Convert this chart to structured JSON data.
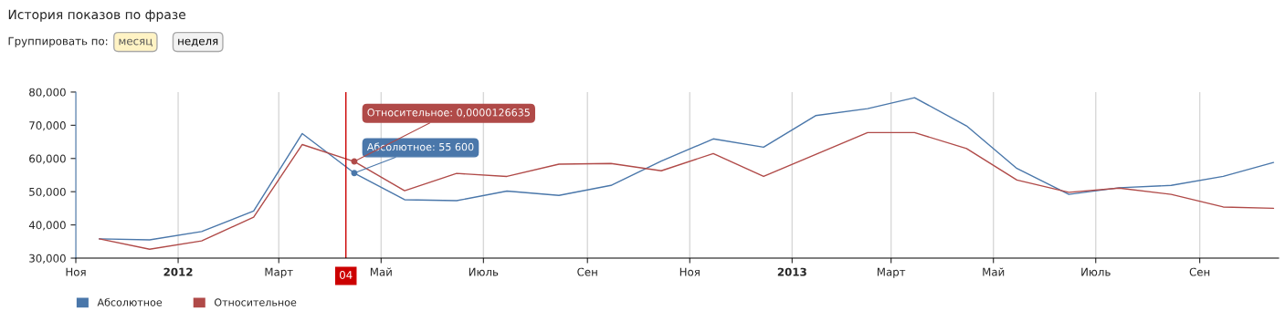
{
  "chart_data": {
    "type": "line",
    "title": "История показов по фразе",
    "x": [
      "2011-11-15",
      "2011-12-15",
      "2012-01-15",
      "2012-02-15",
      "2012-03-15",
      "2012-04-15",
      "2012-05-15",
      "2012-06-15",
      "2012-07-15",
      "2012-08-15",
      "2012-09-15",
      "2012-10-15",
      "2012-11-15",
      "2012-12-15",
      "2013-01-15",
      "2013-02-15",
      "2013-03-15",
      "2013-04-15",
      "2013-05-15",
      "2013-06-15",
      "2013-07-15",
      "2013-08-15",
      "2013-09-15",
      "2013-10-15"
    ],
    "series": [
      {
        "name": "Абсолютное",
        "color": "#4a77aa",
        "values": [
          35800,
          35500,
          38000,
          44200,
          67500,
          55600,
          47600,
          47300,
          50200,
          48900,
          51900,
          59200,
          65900,
          63400,
          72900,
          75000,
          78300,
          69800,
          57000,
          49200,
          51200,
          51900,
          54600,
          58800
        ]
      },
      {
        "name": "Относительное",
        "color": "#b04a48",
        "values": [
          35800,
          32700,
          35200,
          42300,
          64200,
          59100,
          50300,
          55500,
          54600,
          58300,
          58500,
          56300,
          61500,
          54600,
          61200,
          67800,
          67800,
          63000,
          53500,
          49800,
          51100,
          49200,
          45400,
          45000
        ]
      }
    ],
    "xlim": [
      "2011-11-01",
      "2013-10-18"
    ],
    "xticks": [
      {
        "value": "2011-11-01",
        "label": "Ноя"
      },
      {
        "value": "2012-01-01",
        "label": "2012"
      },
      {
        "value": "2012-03-01",
        "label": "Март"
      },
      {
        "value": "2012-05-01",
        "label": "Май"
      },
      {
        "value": "2012-07-01",
        "label": "Июль"
      },
      {
        "value": "2012-09-01",
        "label": "Сен"
      },
      {
        "value": "2012-11-01",
        "label": "Ноя"
      },
      {
        "value": "2013-01-01",
        "label": "2013"
      },
      {
        "value": "2013-03-01",
        "label": "Март"
      },
      {
        "value": "2013-05-01",
        "label": "Май"
      },
      {
        "value": "2013-07-01",
        "label": "Июль"
      },
      {
        "value": "2013-09-01",
        "label": "Сен"
      }
    ],
    "ylim": [
      30000,
      80000
    ],
    "yticks": [
      {
        "value": 30000,
        "label": "30,000"
      },
      {
        "value": 40000,
        "label": "40,000"
      },
      {
        "value": 50000,
        "label": "50,000"
      },
      {
        "value": 60000,
        "label": "60,000"
      },
      {
        "value": 70000,
        "label": "70,000"
      },
      {
        "value": 80000,
        "label": "80,000"
      }
    ],
    "grid": "x",
    "legend": "bottom left",
    "marker": "none",
    "line_style": "solid",
    "ref_lines": [
      {
        "axis": "x",
        "value": "2012-04-10",
        "label": "04",
        "color": "#cc0000"
      }
    ],
    "annotations": [
      "Группировать по:",
      "месяц",
      "неделя",
      {
        "text": "Абсолютное: 55 600",
        "x": "2012-04-15",
        "y": 55600
      },
      {
        "text": "Относительное: 0,0000126635",
        "x": "2012-04-15",
        "y": 59100
      }
    ]
  }
}
